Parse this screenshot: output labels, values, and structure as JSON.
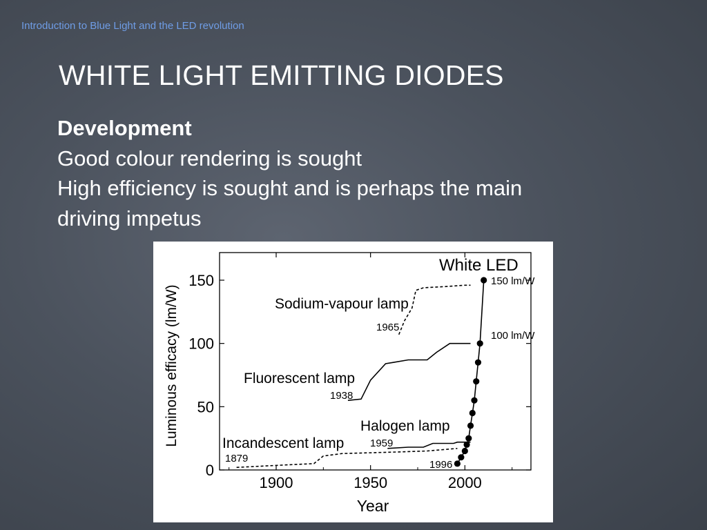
{
  "header": "Introduction to Blue Light and the LED revolution",
  "title": "WHITE LIGHT EMITTING DIODES",
  "body": {
    "heading": "Development",
    "lines": [
      "Good colour rendering is sought",
      "High efficiency is sought and is perhaps the main",
      "driving impetus"
    ]
  },
  "chart_data": {
    "type": "line",
    "xlabel": "Year",
    "ylabel": "Luminous efficacy (lm/W)",
    "xlim": [
      1870,
      2035
    ],
    "ylim": [
      0,
      160
    ],
    "xticks": [
      1900,
      1950,
      2000
    ],
    "yticks": [
      0,
      50,
      100,
      150
    ],
    "grid": false,
    "series": [
      {
        "name": "Sodium-vapour lamp",
        "style": "dashed",
        "start_label": "1965",
        "x": [
          1965,
          1968,
          1972,
          1974,
          1978,
          1990,
          2000,
          2003
        ],
        "y": [
          107,
          118,
          128,
          142,
          144,
          145,
          146,
          146
        ]
      },
      {
        "name": "Fluorescent lamp",
        "style": "solid",
        "start_label": "1938",
        "x": [
          1938,
          1945,
          1950,
          1958,
          1962,
          1970,
          1980,
          1985,
          1992,
          2000,
          2003
        ],
        "y": [
          55,
          56,
          71,
          84,
          85,
          87,
          87,
          93,
          100,
          100,
          100
        ]
      },
      {
        "name": "Halogen lamp",
        "style": "solid",
        "start_label": "1959",
        "x": [
          1959,
          1970,
          1978,
          1983,
          1994,
          1996,
          2003
        ],
        "y": [
          17,
          18,
          18,
          21,
          21,
          22,
          22
        ]
      },
      {
        "name": "Incandescent lamp",
        "style": "dashed",
        "start_label": "1879",
        "x": [
          1879,
          1905,
          1920,
          1925,
          1935,
          1960,
          1980,
          1996
        ],
        "y": [
          2,
          4,
          5,
          11,
          13,
          14,
          15,
          17
        ]
      },
      {
        "name": "White LED",
        "style": "solid-dots",
        "start_label": "1996",
        "x": [
          1996,
          1998,
          2000,
          2001,
          2002,
          2003,
          2004,
          2005,
          2006,
          2007,
          2008,
          2010
        ],
        "y": [
          5,
          10,
          15,
          20,
          25,
          35,
          45,
          55,
          70,
          85,
          100,
          150
        ]
      }
    ],
    "annotations": [
      "150 lm/W",
      "100 lm/W"
    ]
  }
}
